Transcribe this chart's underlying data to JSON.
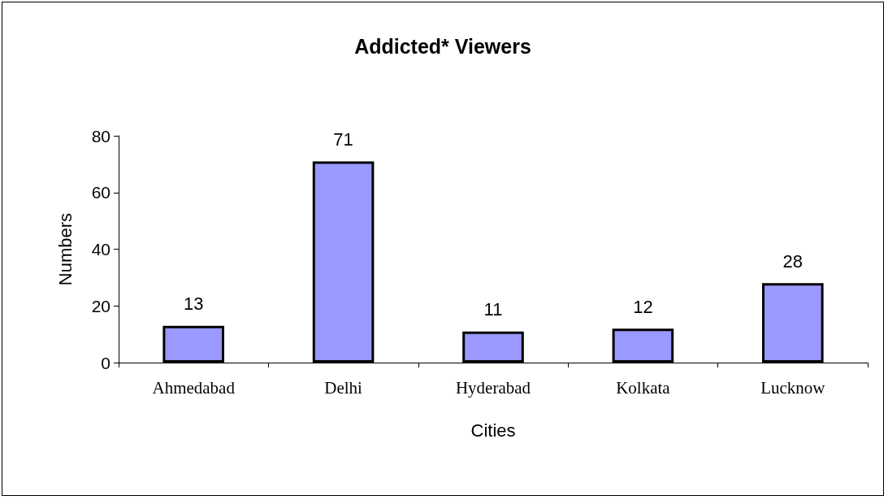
{
  "chart_data": {
    "type": "bar",
    "title": "Addicted* Viewers",
    "xlabel": "Cities",
    "ylabel": "Numbers",
    "categories": [
      "Ahmedabad",
      "Delhi",
      "Hyderabad",
      "Kolkata",
      "Lucknow"
    ],
    "values": [
      13,
      71,
      11,
      12,
      28
    ],
    "color": "#9999ff",
    "ylim": [
      0,
      80
    ],
    "yticks": [
      0,
      20,
      40,
      60,
      80
    ],
    "grid": false,
    "data_labels": true
  }
}
